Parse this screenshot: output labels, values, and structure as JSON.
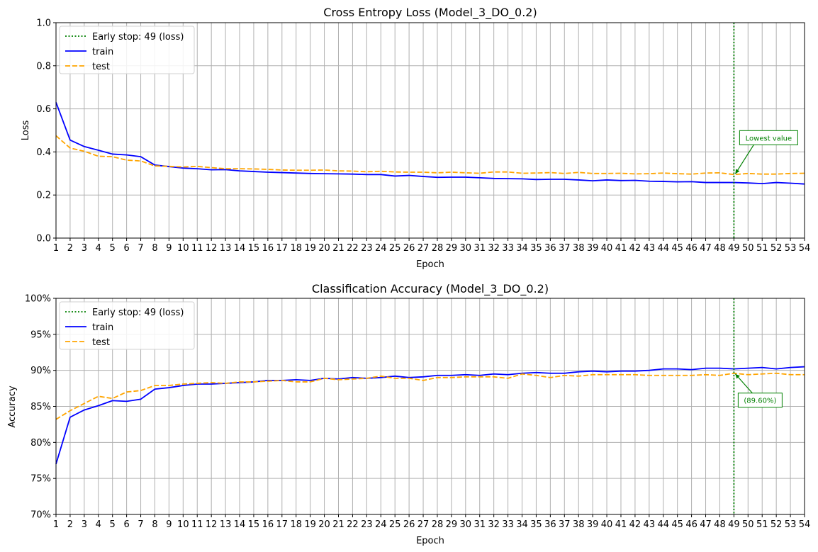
{
  "colors": {
    "train": "#0000ff",
    "test": "#ffa500",
    "early_stop": "#008000",
    "grid": "#b0b0b0"
  },
  "chart_data": [
    {
      "type": "line",
      "title": "Cross Entropy Loss (Model_3_DO_0.2)",
      "xlabel": "Epoch",
      "ylabel": "Loss",
      "xlim": [
        1,
        54
      ],
      "ylim": [
        0,
        1
      ],
      "yticks": [
        0,
        0.2,
        0.4,
        0.6,
        0.8,
        1.0
      ],
      "ytick_labels": [
        "0.0",
        "0.2",
        "0.4",
        "0.6",
        "0.8",
        "1.0"
      ],
      "grid": true,
      "legend_position": "upper-left",
      "legend": [
        "Early stop: 49 (loss)",
        "train",
        "test"
      ],
      "early_stop": {
        "epoch": 49,
        "label": "Early stop: 49 (loss)",
        "style": "dotted"
      },
      "annotation": {
        "text": "Lowest value",
        "x": 49,
        "y": 0.295
      },
      "x": [
        1,
        2,
        3,
        4,
        5,
        6,
        7,
        8,
        9,
        10,
        11,
        12,
        13,
        14,
        15,
        16,
        17,
        18,
        19,
        20,
        21,
        22,
        23,
        24,
        25,
        26,
        27,
        28,
        29,
        30,
        31,
        32,
        33,
        34,
        35,
        36,
        37,
        38,
        39,
        40,
        41,
        42,
        43,
        44,
        45,
        46,
        47,
        48,
        49,
        50,
        51,
        52,
        53,
        54
      ],
      "series": [
        {
          "name": "train",
          "style": "solid",
          "values": [
            0.63,
            0.455,
            0.425,
            0.408,
            0.39,
            0.386,
            0.378,
            0.339,
            0.332,
            0.325,
            0.322,
            0.317,
            0.318,
            0.312,
            0.309,
            0.306,
            0.304,
            0.302,
            0.3,
            0.299,
            0.298,
            0.297,
            0.295,
            0.295,
            0.288,
            0.291,
            0.286,
            0.282,
            0.283,
            0.283,
            0.28,
            0.277,
            0.276,
            0.275,
            0.272,
            0.273,
            0.273,
            0.27,
            0.266,
            0.27,
            0.267,
            0.268,
            0.264,
            0.263,
            0.261,
            0.262,
            0.258,
            0.258,
            0.258,
            0.256,
            0.253,
            0.258,
            0.255,
            0.251
          ]
        },
        {
          "name": "test",
          "style": "dashed",
          "values": [
            0.475,
            0.418,
            0.403,
            0.38,
            0.378,
            0.362,
            0.358,
            0.335,
            0.333,
            0.33,
            0.333,
            0.327,
            0.322,
            0.322,
            0.321,
            0.319,
            0.316,
            0.315,
            0.315,
            0.316,
            0.312,
            0.311,
            0.308,
            0.31,
            0.307,
            0.306,
            0.306,
            0.303,
            0.306,
            0.303,
            0.301,
            0.307,
            0.307,
            0.301,
            0.302,
            0.304,
            0.3,
            0.305,
            0.3,
            0.3,
            0.301,
            0.298,
            0.299,
            0.302,
            0.299,
            0.297,
            0.302,
            0.303,
            0.295,
            0.3,
            0.297,
            0.297,
            0.3,
            0.301
          ]
        }
      ]
    },
    {
      "type": "line",
      "title": "Classification Accuracy (Model_3_DO_0.2)",
      "xlabel": "Epoch",
      "ylabel": "Accuracy",
      "xlim": [
        1,
        54
      ],
      "ylim": [
        70,
        100
      ],
      "yticks": [
        70,
        75,
        80,
        85,
        90,
        95,
        100
      ],
      "ytick_labels": [
        "70%",
        "75%",
        "80%",
        "85%",
        "90%",
        "95%",
        "100%"
      ],
      "grid": true,
      "legend_position": "upper-left",
      "legend": [
        "Early stop: 49 (loss)",
        "train",
        "test"
      ],
      "early_stop": {
        "epoch": 49,
        "label": "Early stop: 49 (loss)",
        "style": "dotted"
      },
      "annotation": {
        "text": "(89.60%)",
        "x": 49,
        "y": 89.6
      },
      "x": [
        1,
        2,
        3,
        4,
        5,
        6,
        7,
        8,
        9,
        10,
        11,
        12,
        13,
        14,
        15,
        16,
        17,
        18,
        19,
        20,
        21,
        22,
        23,
        24,
        25,
        26,
        27,
        28,
        29,
        30,
        31,
        32,
        33,
        34,
        35,
        36,
        37,
        38,
        39,
        40,
        41,
        42,
        43,
        44,
        45,
        46,
        47,
        48,
        49,
        50,
        51,
        52,
        53,
        54
      ],
      "series": [
        {
          "name": "train",
          "style": "solid",
          "values": [
            77.0,
            83.5,
            84.5,
            85.1,
            85.8,
            85.7,
            86.0,
            87.4,
            87.6,
            87.9,
            88.1,
            88.1,
            88.2,
            88.3,
            88.4,
            88.6,
            88.6,
            88.7,
            88.6,
            88.9,
            88.8,
            89.0,
            88.9,
            89.0,
            89.2,
            89.0,
            89.1,
            89.3,
            89.3,
            89.4,
            89.3,
            89.5,
            89.4,
            89.6,
            89.7,
            89.6,
            89.6,
            89.8,
            89.9,
            89.8,
            89.9,
            89.9,
            90.0,
            90.2,
            90.2,
            90.1,
            90.3,
            90.3,
            90.2,
            90.3,
            90.4,
            90.2,
            90.4,
            90.5
          ]
        },
        {
          "name": "test",
          "style": "dashed",
          "values": [
            83.2,
            84.4,
            85.4,
            86.4,
            86.1,
            87.0,
            87.2,
            87.9,
            87.9,
            88.1,
            88.2,
            88.3,
            88.2,
            88.4,
            88.4,
            88.5,
            88.6,
            88.4,
            88.4,
            88.9,
            88.7,
            88.8,
            88.9,
            89.2,
            88.9,
            88.9,
            88.6,
            89.0,
            89.0,
            89.1,
            89.1,
            89.1,
            88.9,
            89.5,
            89.3,
            89.0,
            89.3,
            89.2,
            89.4,
            89.4,
            89.4,
            89.4,
            89.3,
            89.3,
            89.3,
            89.3,
            89.4,
            89.3,
            89.6,
            89.4,
            89.5,
            89.6,
            89.4,
            89.4
          ]
        }
      ]
    }
  ]
}
